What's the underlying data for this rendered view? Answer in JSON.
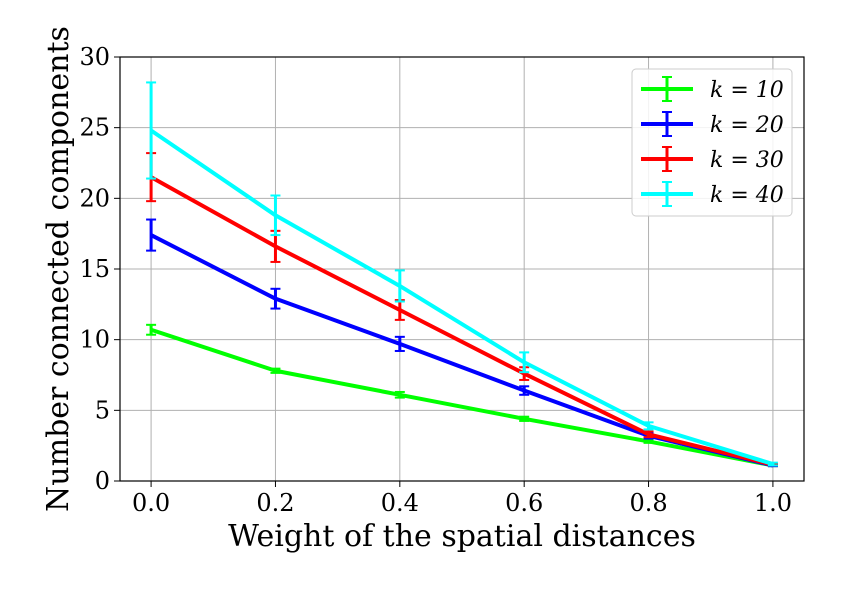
{
  "chart_data": {
    "type": "line",
    "title": "",
    "xlabel": "Weight of the spatial distances",
    "ylabel": "Number connected components",
    "xlim": [
      -0.05,
      1.05
    ],
    "ylim": [
      0,
      30
    ],
    "xticks": [
      "0.0",
      "0.2",
      "0.4",
      "0.6",
      "0.8",
      "1.0"
    ],
    "yticks": [
      "0",
      "5",
      "10",
      "15",
      "20",
      "25",
      "30"
    ],
    "grid": true,
    "legend_position": "top-right",
    "x": [
      0.0,
      0.2,
      0.4,
      0.6,
      0.8,
      1.0
    ],
    "series": [
      {
        "name": "k = 10",
        "color": "#00ff00",
        "values": [
          10.7,
          7.8,
          6.1,
          4.4,
          2.8,
          1.1
        ],
        "errors": [
          0.35,
          0.15,
          0.2,
          0.15,
          0.1,
          0.05
        ]
      },
      {
        "name": "k = 20",
        "color": "#0000ff",
        "values": [
          17.4,
          12.9,
          9.7,
          6.4,
          3.2,
          1.1
        ],
        "errors": [
          1.1,
          0.7,
          0.5,
          0.3,
          0.2,
          0.05
        ]
      },
      {
        "name": "k = 30",
        "color": "#ff0000",
        "values": [
          21.5,
          16.6,
          12.1,
          7.6,
          3.3,
          1.15
        ],
        "errors": [
          1.7,
          1.1,
          0.7,
          0.45,
          0.2,
          0.05
        ]
      },
      {
        "name": "k = 40",
        "color": "#00ffff",
        "values": [
          24.8,
          18.8,
          13.8,
          8.4,
          3.9,
          1.2
        ],
        "errors": [
          3.4,
          1.4,
          1.1,
          0.7,
          0.25,
          0.1
        ]
      }
    ]
  }
}
